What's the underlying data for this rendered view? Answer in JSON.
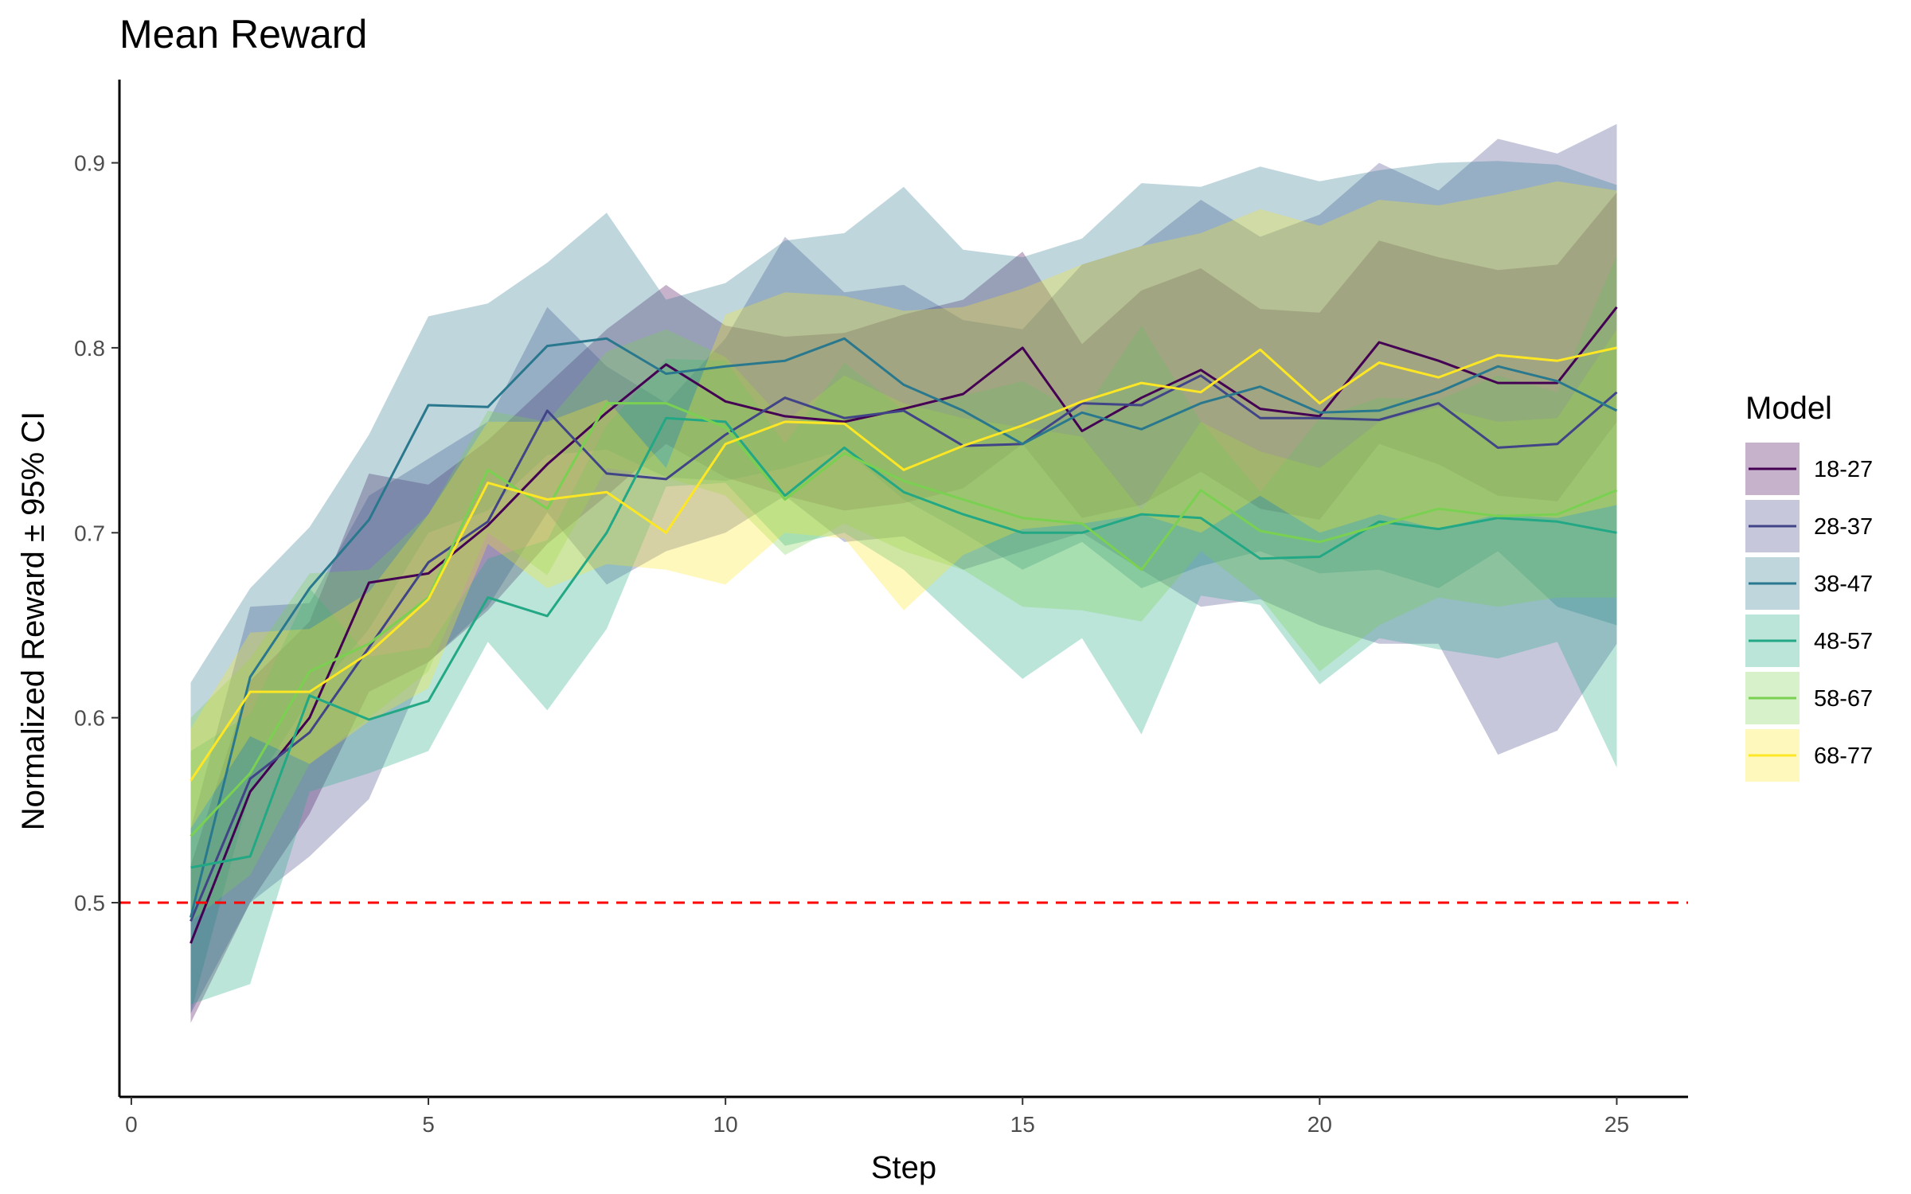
{
  "chart_data": {
    "type": "line",
    "title": "Mean Reward",
    "xlabel": "Step",
    "ylabel": "Normalized Reward ± 95% CI",
    "xlim": [
      -0.2,
      26.2
    ],
    "ylim": [
      0.395,
      0.945
    ],
    "xticks": [
      0,
      5,
      10,
      15,
      20,
      25
    ],
    "yticks": [
      0.5,
      0.6,
      0.7,
      0.8,
      0.9
    ],
    "ytick_labels": [
      "0.5",
      "0.6",
      "0.7",
      "0.8",
      "0.9"
    ],
    "grid": false,
    "legend_title": "Model",
    "legend_position": "right",
    "band_opacity": 0.3,
    "reference_line": {
      "y": 0.5,
      "color": "#ff0000",
      "style": "dashed"
    },
    "x": [
      1,
      2,
      3,
      4,
      5,
      6,
      7,
      8,
      9,
      10,
      11,
      12,
      13,
      14,
      15,
      16,
      17,
      18,
      19,
      20,
      21,
      22,
      23,
      24,
      25
    ],
    "series": [
      {
        "name": "18-27",
        "color": "#440154",
        "values": [
          0.478,
          0.56,
          0.6,
          0.673,
          0.678,
          0.704,
          0.737,
          0.765,
          0.791,
          0.771,
          0.763,
          0.76,
          0.767,
          0.775,
          0.8,
          0.755,
          0.773,
          0.788,
          0.767,
          0.763,
          0.803,
          0.793,
          0.781,
          0.781,
          0.822
        ],
        "lower": [
          0.435,
          0.5,
          0.548,
          0.614,
          0.63,
          0.658,
          0.694,
          0.72,
          0.748,
          0.73,
          0.72,
          0.712,
          0.716,
          0.724,
          0.748,
          0.708,
          0.715,
          0.733,
          0.713,
          0.707,
          0.748,
          0.737,
          0.72,
          0.717,
          0.76
        ],
        "upper": [
          0.52,
          0.62,
          0.652,
          0.732,
          0.726,
          0.75,
          0.78,
          0.81,
          0.834,
          0.812,
          0.806,
          0.808,
          0.818,
          0.826,
          0.852,
          0.802,
          0.831,
          0.843,
          0.821,
          0.819,
          0.858,
          0.849,
          0.842,
          0.845,
          0.884
        ]
      },
      {
        "name": "28-37",
        "color": "#414487",
        "values": [
          0.49,
          0.567,
          0.592,
          0.638,
          0.684,
          0.706,
          0.766,
          0.732,
          0.729,
          0.753,
          0.773,
          0.762,
          0.766,
          0.747,
          0.748,
          0.77,
          0.769,
          0.785,
          0.762,
          0.762,
          0.761,
          0.77,
          0.746,
          0.748,
          0.776
        ],
        "lower": [
          0.44,
          0.5,
          0.525,
          0.556,
          0.63,
          0.66,
          0.711,
          0.672,
          0.69,
          0.7,
          0.72,
          0.695,
          0.698,
          0.68,
          0.69,
          0.7,
          0.68,
          0.66,
          0.664,
          0.65,
          0.64,
          0.64,
          0.58,
          0.593,
          0.64
        ],
        "upper": [
          0.54,
          0.66,
          0.662,
          0.72,
          0.74,
          0.76,
          0.822,
          0.79,
          0.77,
          0.805,
          0.86,
          0.83,
          0.834,
          0.815,
          0.81,
          0.845,
          0.855,
          0.88,
          0.86,
          0.872,
          0.9,
          0.885,
          0.913,
          0.905,
          0.921
        ]
      },
      {
        "name": "38-47",
        "color": "#2a788e",
        "values": [
          0.492,
          0.622,
          0.67,
          0.707,
          0.769,
          0.768,
          0.801,
          0.805,
          0.786,
          0.79,
          0.793,
          0.805,
          0.78,
          0.766,
          0.748,
          0.765,
          0.756,
          0.77,
          0.779,
          0.765,
          0.766,
          0.776,
          0.79,
          0.782,
          0.766
        ],
        "lower": [
          0.44,
          0.56,
          0.61,
          0.648,
          0.7,
          0.712,
          0.742,
          0.745,
          0.73,
          0.728,
          0.735,
          0.745,
          0.718,
          0.7,
          0.68,
          0.695,
          0.67,
          0.682,
          0.69,
          0.678,
          0.68,
          0.67,
          0.69,
          0.66,
          0.65
        ],
        "upper": [
          0.619,
          0.67,
          0.703,
          0.753,
          0.817,
          0.824,
          0.846,
          0.873,
          0.826,
          0.835,
          0.858,
          0.862,
          0.887,
          0.853,
          0.849,
          0.859,
          0.889,
          0.887,
          0.898,
          0.89,
          0.896,
          0.9,
          0.901,
          0.899,
          0.888
        ]
      },
      {
        "name": "48-57",
        "color": "#22a884",
        "values": [
          0.519,
          0.525,
          0.612,
          0.599,
          0.609,
          0.665,
          0.655,
          0.7,
          0.762,
          0.76,
          0.72,
          0.746,
          0.722,
          0.71,
          0.7,
          0.7,
          0.71,
          0.708,
          0.686,
          0.687,
          0.706,
          0.702,
          0.708,
          0.706,
          0.7
        ],
        "lower": [
          0.445,
          0.456,
          0.56,
          0.57,
          0.582,
          0.641,
          0.604,
          0.648,
          0.725,
          0.727,
          0.693,
          0.7,
          0.68,
          0.65,
          0.621,
          0.643,
          0.591,
          0.666,
          0.661,
          0.618,
          0.643,
          0.637,
          0.632,
          0.641,
          0.573
        ],
        "upper": [
          0.582,
          0.602,
          0.67,
          0.633,
          0.638,
          0.686,
          0.696,
          0.758,
          0.794,
          0.793,
          0.748,
          0.792,
          0.766,
          0.774,
          0.782,
          0.764,
          0.812,
          0.76,
          0.722,
          0.762,
          0.773,
          0.772,
          0.785,
          0.776,
          0.85
        ]
      },
      {
        "name": "58-67",
        "color": "#7ad151",
        "values": [
          0.536,
          0.57,
          0.625,
          0.64,
          0.665,
          0.734,
          0.713,
          0.77,
          0.77,
          0.757,
          0.718,
          0.743,
          0.728,
          0.718,
          0.708,
          0.705,
          0.68,
          0.723,
          0.701,
          0.695,
          0.704,
          0.713,
          0.709,
          0.71,
          0.723
        ],
        "lower": [
          0.49,
          0.515,
          0.575,
          0.6,
          0.625,
          0.7,
          0.677,
          0.735,
          0.73,
          0.72,
          0.688,
          0.705,
          0.69,
          0.68,
          0.66,
          0.658,
          0.652,
          0.69,
          0.665,
          0.625,
          0.65,
          0.665,
          0.66,
          0.665,
          0.665
        ],
        "upper": [
          0.6,
          0.632,
          0.678,
          0.68,
          0.71,
          0.766,
          0.76,
          0.798,
          0.81,
          0.795,
          0.76,
          0.785,
          0.77,
          0.762,
          0.757,
          0.752,
          0.712,
          0.76,
          0.744,
          0.735,
          0.76,
          0.768,
          0.76,
          0.762,
          0.81
        ]
      },
      {
        "name": "68-77",
        "color": "#fde725",
        "values": [
          0.566,
          0.614,
          0.614,
          0.635,
          0.664,
          0.727,
          0.718,
          0.722,
          0.7,
          0.748,
          0.76,
          0.759,
          0.734,
          0.747,
          0.758,
          0.771,
          0.781,
          0.776,
          0.799,
          0.77,
          0.792,
          0.784,
          0.796,
          0.793,
          0.8
        ],
        "lower": [
          0.54,
          0.59,
          0.575,
          0.598,
          0.616,
          0.694,
          0.67,
          0.683,
          0.68,
          0.672,
          0.7,
          0.697,
          0.658,
          0.688,
          0.702,
          0.705,
          0.71,
          0.7,
          0.72,
          0.7,
          0.71,
          0.702,
          0.71,
          0.708,
          0.715
        ],
        "upper": [
          0.594,
          0.646,
          0.648,
          0.668,
          0.71,
          0.76,
          0.76,
          0.772,
          0.735,
          0.818,
          0.83,
          0.828,
          0.82,
          0.822,
          0.832,
          0.845,
          0.855,
          0.862,
          0.875,
          0.866,
          0.88,
          0.877,
          0.883,
          0.89,
          0.885
        ]
      }
    ]
  }
}
